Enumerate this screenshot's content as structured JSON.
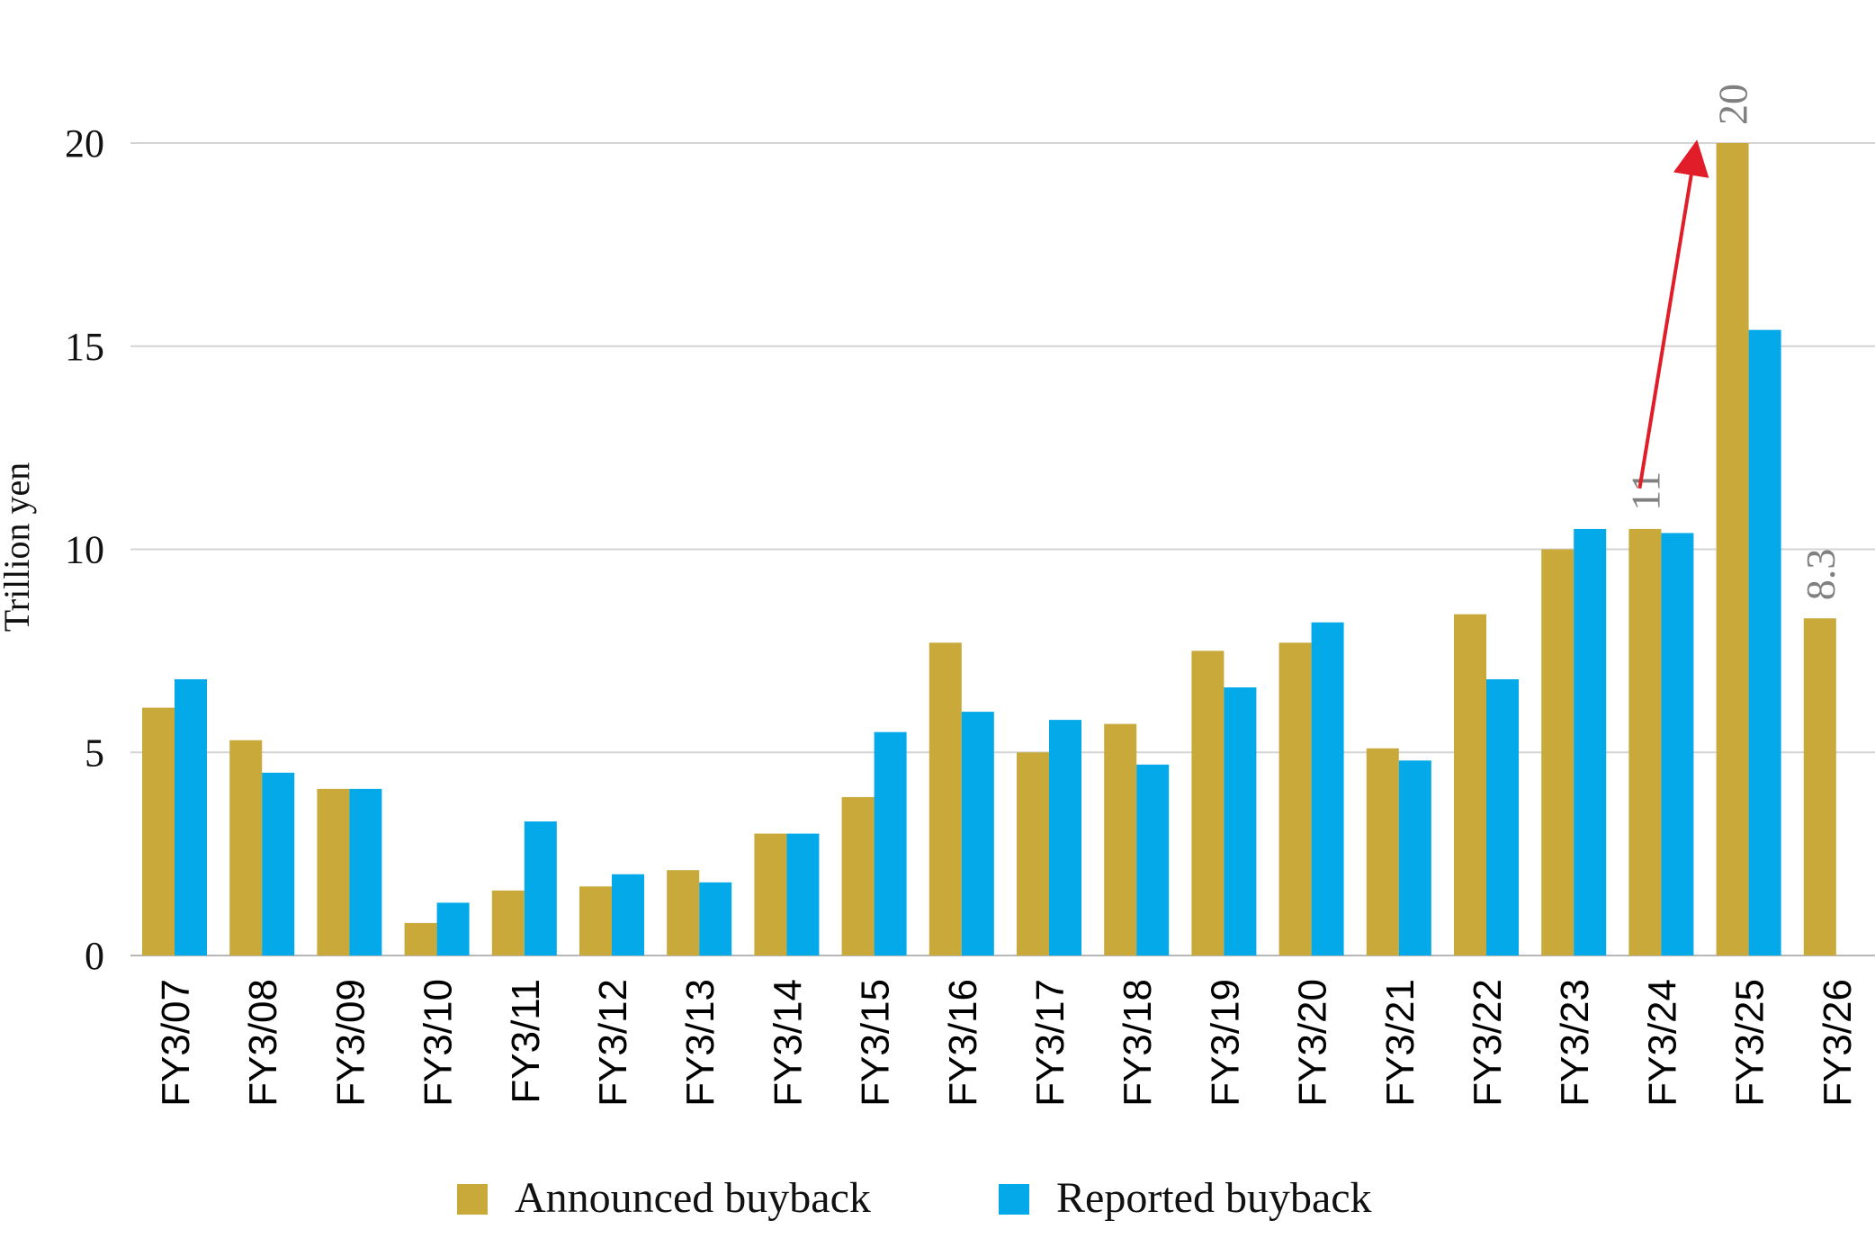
{
  "chart_data": {
    "type": "bar",
    "ylabel": "Trillion yen",
    "ylim": [
      0,
      20
    ],
    "yticks": [
      0,
      5,
      10,
      15,
      20
    ],
    "grid": true,
    "legend_position": "bottom",
    "categories": [
      "FY3/07",
      "FY3/08",
      "FY3/09",
      "FY3/10",
      "FY3/11",
      "FY3/12",
      "FY3/13",
      "FY3/14",
      "FY3/15",
      "FY3/16",
      "FY3/17",
      "FY3/18",
      "FY3/19",
      "FY3/20",
      "FY3/21",
      "FY3/22",
      "FY3/23",
      "FY3/24",
      "FY3/25",
      "FY3/26"
    ],
    "series": [
      {
        "name": "Announced buyback",
        "color": "#c8a93a",
        "values": [
          6.1,
          5.3,
          4.1,
          0.8,
          1.6,
          1.7,
          2.1,
          3.0,
          3.9,
          7.7,
          5.0,
          5.7,
          7.5,
          7.7,
          5.1,
          8.4,
          10.0,
          10.5,
          20.0,
          8.3
        ]
      },
      {
        "name": "Reported buyback",
        "color": "#04a9e9",
        "values": [
          6.8,
          4.5,
          4.1,
          1.3,
          3.3,
          2.0,
          1.8,
          3.0,
          5.5,
          6.0,
          5.8,
          4.7,
          6.6,
          8.2,
          4.8,
          6.8,
          10.5,
          10.4,
          15.4,
          null
        ]
      }
    ],
    "annotations": [
      {
        "text": "11",
        "category": "FY3/24",
        "series": 0
      },
      {
        "text": "20",
        "category": "FY3/25",
        "series": 0
      },
      {
        "text": "8.3",
        "category": "FY3/26",
        "series": 0
      }
    ],
    "arrow": {
      "from_category": "FY3/24",
      "to_category": "FY3/25",
      "color": "#e11d2a"
    }
  }
}
